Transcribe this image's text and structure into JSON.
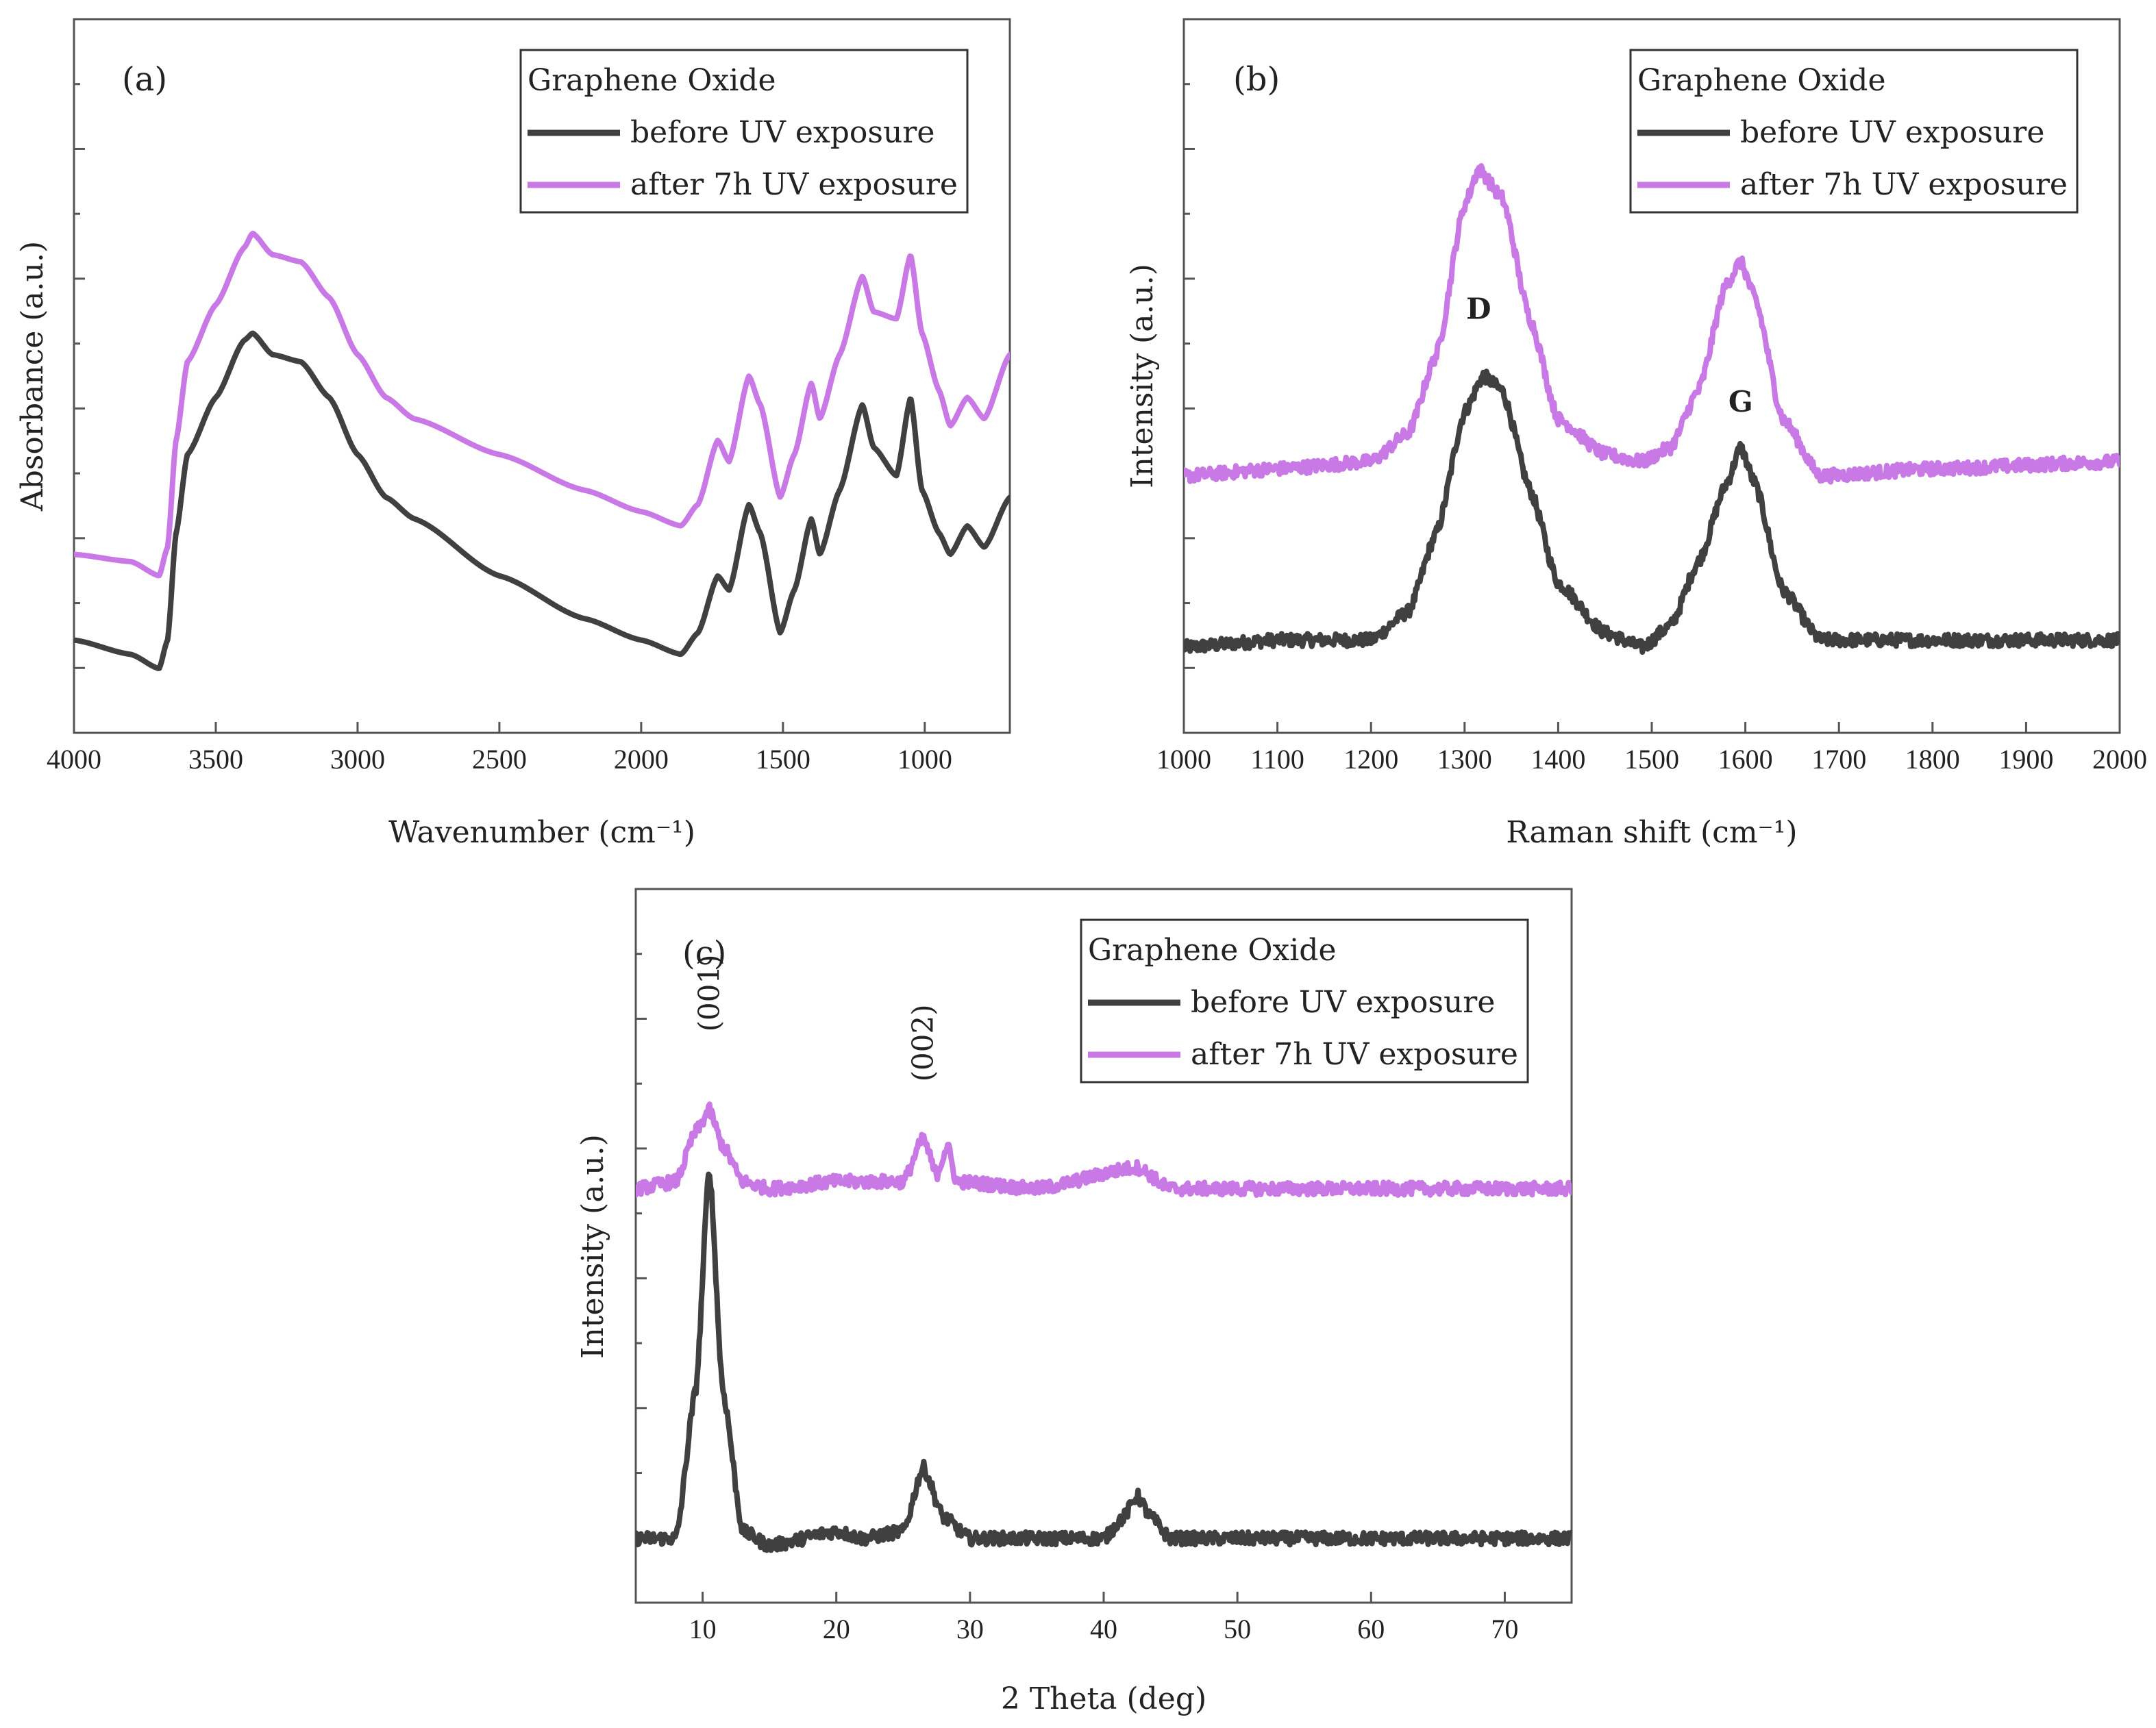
{
  "chart_data": [
    {
      "id": "a",
      "type": "line",
      "panel_label": "(a)",
      "title": "",
      "xlabel": "Wavenumber (cm⁻¹)",
      "ylabel": "Absorbance (a.u.)",
      "xlim": [
        4000,
        700
      ],
      "ylim": [
        0,
        1
      ],
      "x_ticks": [
        4000,
        3500,
        3000,
        2500,
        2000,
        1500,
        1000
      ],
      "x_tick_labels": [
        "4000",
        "3500",
        "3000",
        "2500",
        "2000",
        "1500",
        "1000"
      ],
      "legend": {
        "title": "Graphene Oxide",
        "entries": [
          "before UV exposure",
          "after 7h UV exposure"
        ],
        "placement": "top-right"
      },
      "series": [
        {
          "name": "before UV exposure",
          "color": "#404040",
          "points": [
            [
              4000,
              0.13
            ],
            [
              3800,
              0.11
            ],
            [
              3700,
              0.09
            ],
            [
              3670,
              0.13
            ],
            [
              3640,
              0.28
            ],
            [
              3600,
              0.39
            ],
            [
              3500,
              0.47
            ],
            [
              3400,
              0.55
            ],
            [
              3370,
              0.56
            ],
            [
              3300,
              0.53
            ],
            [
              3200,
              0.52
            ],
            [
              3100,
              0.47
            ],
            [
              3000,
              0.39
            ],
            [
              2900,
              0.33
            ],
            [
              2800,
              0.3
            ],
            [
              2500,
              0.22
            ],
            [
              2200,
              0.16
            ],
            [
              2000,
              0.13
            ],
            [
              1860,
              0.11
            ],
            [
              1800,
              0.14
            ],
            [
              1730,
              0.22
            ],
            [
              1690,
              0.2
            ],
            [
              1620,
              0.32
            ],
            [
              1580,
              0.28
            ],
            [
              1510,
              0.14
            ],
            [
              1460,
              0.2
            ],
            [
              1400,
              0.3
            ],
            [
              1370,
              0.25
            ],
            [
              1300,
              0.34
            ],
            [
              1220,
              0.46
            ],
            [
              1180,
              0.4
            ],
            [
              1100,
              0.36
            ],
            [
              1050,
              0.47
            ],
            [
              1010,
              0.34
            ],
            [
              950,
              0.28
            ],
            [
              910,
              0.25
            ],
            [
              850,
              0.29
            ],
            [
              790,
              0.26
            ],
            [
              700,
              0.33
            ]
          ]
        },
        {
          "name": "after 7h UV exposure",
          "color": "#c879e6",
          "points": [
            [
              4000,
              0.25
            ],
            [
              3800,
              0.24
            ],
            [
              3700,
              0.22
            ],
            [
              3670,
              0.26
            ],
            [
              3640,
              0.41
            ],
            [
              3600,
              0.52
            ],
            [
              3500,
              0.6
            ],
            [
              3400,
              0.68
            ],
            [
              3370,
              0.7
            ],
            [
              3300,
              0.67
            ],
            [
              3200,
              0.66
            ],
            [
              3100,
              0.61
            ],
            [
              3000,
              0.53
            ],
            [
              2900,
              0.47
            ],
            [
              2800,
              0.44
            ],
            [
              2500,
              0.39
            ],
            [
              2200,
              0.34
            ],
            [
              2000,
              0.31
            ],
            [
              1860,
              0.29
            ],
            [
              1800,
              0.32
            ],
            [
              1730,
              0.41
            ],
            [
              1690,
              0.38
            ],
            [
              1620,
              0.5
            ],
            [
              1580,
              0.46
            ],
            [
              1510,
              0.33
            ],
            [
              1460,
              0.39
            ],
            [
              1400,
              0.49
            ],
            [
              1370,
              0.44
            ],
            [
              1300,
              0.53
            ],
            [
              1220,
              0.64
            ],
            [
              1180,
              0.59
            ],
            [
              1100,
              0.58
            ],
            [
              1050,
              0.67
            ],
            [
              1010,
              0.56
            ],
            [
              950,
              0.48
            ],
            [
              910,
              0.43
            ],
            [
              850,
              0.47
            ],
            [
              790,
              0.44
            ],
            [
              700,
              0.53
            ]
          ]
        }
      ]
    },
    {
      "id": "b",
      "type": "line",
      "panel_label": "(b)",
      "title": "",
      "xlabel": "Raman shift (cm⁻¹)",
      "ylabel": "Intensity (a.u.)",
      "xlim": [
        1000,
        2000
      ],
      "ylim": [
        0,
        1
      ],
      "x_ticks": [
        1000,
        1100,
        1200,
        1300,
        1400,
        1500,
        1600,
        1700,
        1800,
        1900,
        2000
      ],
      "x_tick_labels": [
        "1000",
        "1100",
        "1200",
        "1300",
        "1400",
        "1500",
        "1600",
        "1700",
        "1800",
        "1900",
        "2000"
      ],
      "legend": {
        "title": "Graphene Oxide",
        "entries": [
          "before UV exposure",
          "after 7h UV exposure"
        ],
        "placement": "top-right"
      },
      "annotations": [
        {
          "text": "D",
          "x": 1315,
          "y": 0.58
        },
        {
          "text": "G",
          "x": 1595,
          "y": 0.45
        }
      ],
      "series": [
        {
          "name": "before UV exposure",
          "color": "#404040",
          "points": [
            [
              1000,
              0.12
            ],
            [
              1100,
              0.13
            ],
            [
              1200,
              0.13
            ],
            [
              1240,
              0.17
            ],
            [
              1270,
              0.28
            ],
            [
              1300,
              0.45
            ],
            [
              1320,
              0.5
            ],
            [
              1340,
              0.48
            ],
            [
              1370,
              0.34
            ],
            [
              1400,
              0.21
            ],
            [
              1450,
              0.14
            ],
            [
              1490,
              0.12
            ],
            [
              1520,
              0.15
            ],
            [
              1550,
              0.24
            ],
            [
              1580,
              0.35
            ],
            [
              1595,
              0.4
            ],
            [
              1610,
              0.35
            ],
            [
              1640,
              0.2
            ],
            [
              1680,
              0.13
            ],
            [
              1800,
              0.13
            ],
            [
              2000,
              0.13
            ]
          ]
        },
        {
          "name": "after 7h UV exposure",
          "color": "#c879e6",
          "points": [
            [
              1000,
              0.36
            ],
            [
              1100,
              0.37
            ],
            [
              1200,
              0.38
            ],
            [
              1240,
              0.42
            ],
            [
              1270,
              0.53
            ],
            [
              1300,
              0.74
            ],
            [
              1315,
              0.79
            ],
            [
              1340,
              0.75
            ],
            [
              1370,
              0.58
            ],
            [
              1400,
              0.44
            ],
            [
              1450,
              0.39
            ],
            [
              1490,
              0.38
            ],
            [
              1520,
              0.4
            ],
            [
              1550,
              0.48
            ],
            [
              1580,
              0.63
            ],
            [
              1595,
              0.66
            ],
            [
              1610,
              0.61
            ],
            [
              1640,
              0.44
            ],
            [
              1680,
              0.36
            ],
            [
              1800,
              0.37
            ],
            [
              2000,
              0.38
            ]
          ]
        }
      ]
    },
    {
      "id": "c",
      "type": "line",
      "panel_label": "(c)",
      "title": "",
      "xlabel": "2 Theta (deg)",
      "ylabel": "Intensity (a.u.)",
      "xlim": [
        5,
        75
      ],
      "ylim": [
        0,
        1
      ],
      "x_ticks": [
        10,
        20,
        30,
        40,
        50,
        60,
        70
      ],
      "x_tick_labels": [
        "10",
        "20",
        "30",
        "40",
        "50",
        "60",
        "70"
      ],
      "legend": {
        "title": "Graphene Oxide",
        "entries": [
          "before UV exposure",
          "after 7h UV exposure"
        ],
        "placement": "top-right"
      },
      "annotations": [
        {
          "text": "(001)",
          "x": 10.5,
          "y": 0.8
        },
        {
          "text": "(002)",
          "x": 26.5,
          "y": 0.73
        }
      ],
      "series": [
        {
          "name": "before UV exposure",
          "color": "#404040",
          "points": [
            [
              5,
              0.09
            ],
            [
              8,
              0.09
            ],
            [
              9.5,
              0.3
            ],
            [
              10.5,
              0.61
            ],
            [
              11.5,
              0.3
            ],
            [
              13,
              0.1
            ],
            [
              15,
              0.08
            ],
            [
              20,
              0.1
            ],
            [
              22,
              0.09
            ],
            [
              25,
              0.1
            ],
            [
              26.5,
              0.19
            ],
            [
              28,
              0.12
            ],
            [
              30,
              0.09
            ],
            [
              40,
              0.09
            ],
            [
              41.5,
              0.12
            ],
            [
              42.5,
              0.15
            ],
            [
              43.5,
              0.12
            ],
            [
              45,
              0.09
            ],
            [
              75,
              0.09
            ]
          ]
        },
        {
          "name": "after 7h UV exposure",
          "color": "#c879e6",
          "points": [
            [
              5,
              0.58
            ],
            [
              8,
              0.59
            ],
            [
              9.5,
              0.66
            ],
            [
              10.5,
              0.69
            ],
            [
              11.5,
              0.64
            ],
            [
              13,
              0.59
            ],
            [
              15,
              0.58
            ],
            [
              20,
              0.59
            ],
            [
              25,
              0.59
            ],
            [
              26.5,
              0.65
            ],
            [
              27.5,
              0.6
            ],
            [
              28.3,
              0.64
            ],
            [
              29,
              0.59
            ],
            [
              35,
              0.58
            ],
            [
              42.5,
              0.61
            ],
            [
              45,
              0.58
            ],
            [
              75,
              0.58
            ]
          ]
        }
      ]
    }
  ]
}
